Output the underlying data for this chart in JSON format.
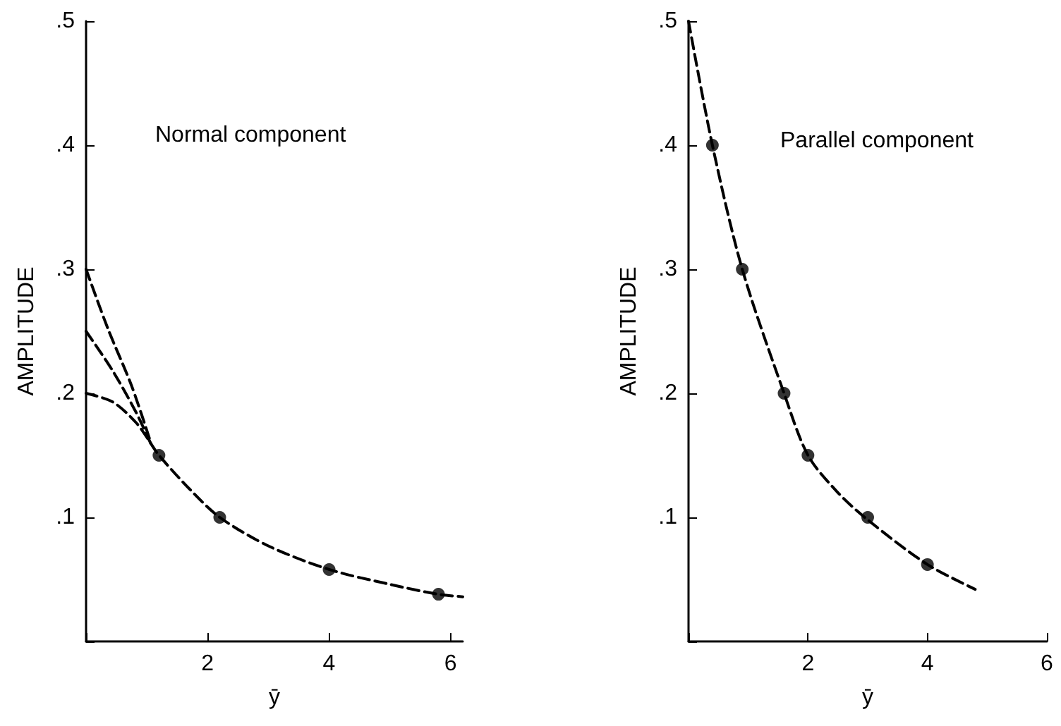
{
  "chart_data": [
    {
      "type": "line",
      "xlabel": "ȳ",
      "ylabel": "AMPLITUDE",
      "annotations": [
        "Normal component"
      ],
      "xlim": [
        0,
        6.2
      ],
      "ylim": [
        0,
        0.5
      ],
      "xticks": [
        {
          "value": 0,
          "label": null
        },
        2,
        4,
        6
      ],
      "yticks": [
        {
          "value": 0,
          "label": null
        },
        {
          "value": 0.1,
          "label": ".1"
        },
        {
          "value": 0.2,
          "label": ".2"
        },
        {
          "value": 0.3,
          "label": ".3"
        },
        {
          "value": 0.4,
          "label": ".4"
        },
        {
          "value": 0.5,
          "label": ".5"
        }
      ],
      "series": [
        {
          "type": "line",
          "color": "#000000",
          "line_style": "dashed",
          "marker": "none",
          "x": [
            0,
            0.36,
            0.75,
            1.06
          ],
          "values": [
            0.3,
            0.252,
            0.206,
            0.161
          ]
        },
        {
          "type": "line",
          "color": "#000000",
          "line_style": "dashed",
          "marker": "none",
          "x": [
            0,
            0.44,
            0.83,
            1.06
          ],
          "values": [
            0.25,
            0.218,
            0.184,
            0.16
          ]
        },
        {
          "type": "line",
          "color": "#000000",
          "line_style": "dashed",
          "marker": "none",
          "x": [
            0,
            0.44,
            0.83,
            1.06
          ],
          "values": [
            0.2,
            0.193,
            0.176,
            0.16
          ]
        },
        {
          "type": "line",
          "color": "#000000",
          "line_style": "dashed",
          "marker": "none",
          "x": [
            1.06,
            1.2,
            1.7,
            2.2,
            3.0,
            4.0,
            5.0,
            5.8,
            6.2
          ],
          "values": [
            0.16,
            0.15,
            0.123,
            0.1,
            0.077,
            0.058,
            0.046,
            0.038,
            0.036
          ]
        },
        {
          "type": "scatter",
          "color": "#000000",
          "marker": "circle",
          "x": [
            1.2,
            2.2,
            4.0,
            5.8
          ],
          "values": [
            0.15,
            0.1,
            0.058,
            0.038
          ]
        }
      ]
    },
    {
      "type": "line",
      "xlabel": "ȳ",
      "ylabel": "AMPLITUDE",
      "annotations": [
        "Parallel component"
      ],
      "xlim": [
        0,
        6
      ],
      "ylim": [
        0,
        0.5
      ],
      "xticks": [
        {
          "value": 0,
          "label": null
        },
        2,
        4,
        6
      ],
      "yticks": [
        {
          "value": 0,
          "label": null
        },
        {
          "value": 0.1,
          "label": ".1"
        },
        {
          "value": 0.2,
          "label": ".2"
        },
        {
          "value": 0.3,
          "label": ".3"
        },
        {
          "value": 0.4,
          "label": ".4"
        },
        {
          "value": 0.5,
          "label": ".5"
        }
      ],
      "series": [
        {
          "type": "line",
          "color": "#000000",
          "line_style": "dashed",
          "marker": "none",
          "x": [
            0,
            0.4,
            0.9,
            1.6,
            2.0,
            2.5,
            3.0,
            4.0,
            4.8
          ],
          "values": [
            0.5,
            0.4,
            0.3,
            0.2,
            0.15,
            0.12,
            0.098,
            0.062,
            0.042
          ]
        },
        {
          "type": "scatter",
          "color": "#000000",
          "marker": "circle",
          "x": [
            0.4,
            0.9,
            1.6,
            2.0,
            3.0,
            4.0
          ],
          "values": [
            0.4,
            0.3,
            0.2,
            0.15,
            0.1,
            0.062
          ]
        }
      ]
    }
  ]
}
